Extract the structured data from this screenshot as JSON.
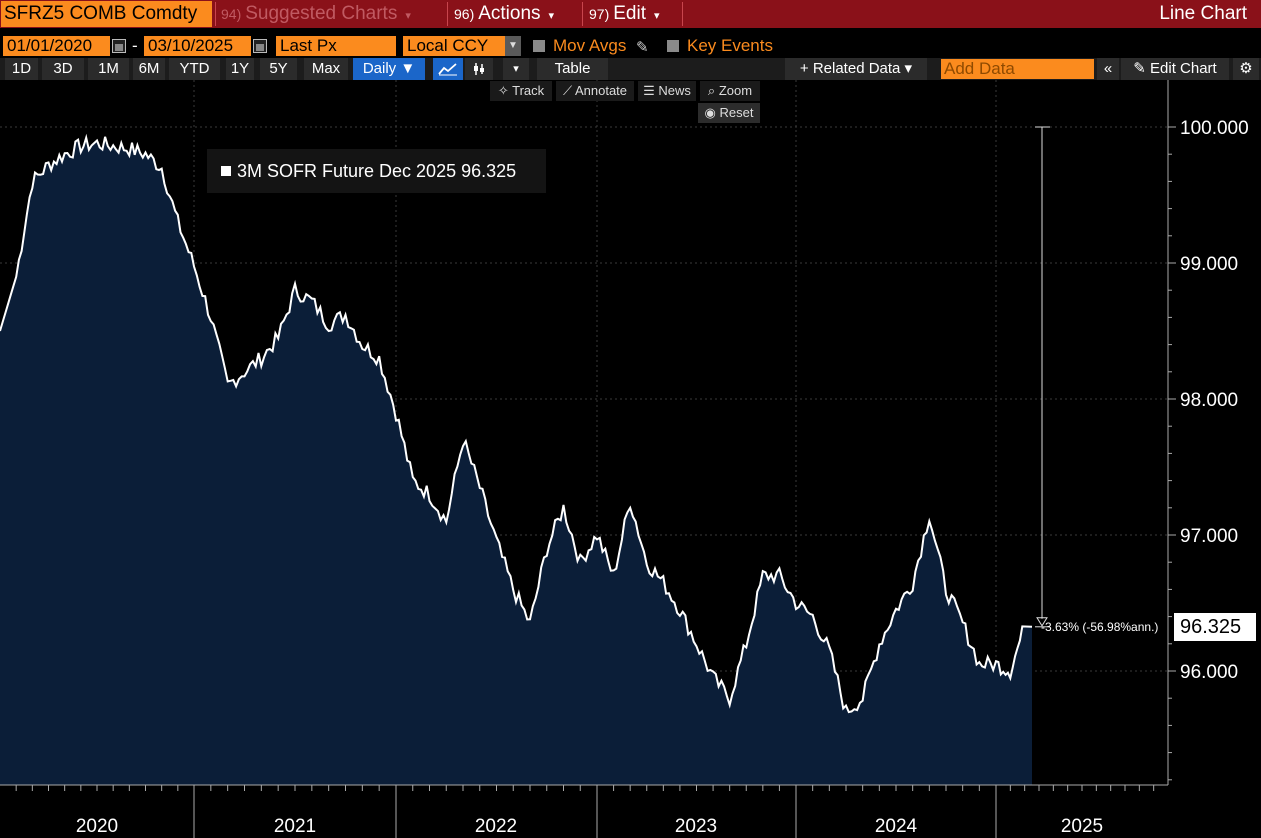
{
  "topbar": {
    "ticker": "SFRZ5 COMB Comdty",
    "menus": [
      {
        "num": "94)",
        "label": "Suggested Charts",
        "dim": true
      },
      {
        "num": "96)",
        "label": "Actions",
        "dim": false
      },
      {
        "num": "97)",
        "label": "Edit",
        "dim": false
      }
    ],
    "title": "Line Chart"
  },
  "controls": {
    "start_date": "01/01/2020",
    "date_sep": "-",
    "end_date": "03/10/2025",
    "field": "Last Px",
    "currency": "Local CCY",
    "mov_avgs": "Mov Avgs",
    "key_events": "Key Events"
  },
  "toolbar": {
    "ranges": [
      "1D",
      "3D",
      "1M",
      "6M",
      "YTD",
      "1Y",
      "5Y",
      "Max"
    ],
    "frequency": "Daily ▼",
    "table": "Table",
    "related_data": "+ Related Data ▾",
    "add_data_placeholder": "Add Data",
    "edit_chart": "Edit Chart"
  },
  "chart_tools": {
    "track": "Track",
    "annotate": "Annotate",
    "news": "News",
    "zoom": "Zoom",
    "reset": "Reset"
  },
  "legend": {
    "text": "3M SOFR Future Dec 2025 96.325"
  },
  "annotation": {
    "change": "-3.63% (-56.98%ann.)",
    "last_value": "96.325"
  },
  "colors": {
    "accent_orange": "#fb8b1e",
    "topbar_red": "#8a1119",
    "area_fill": "#0b1e38",
    "line": "#ffffff",
    "active_blue": "#1b66c9"
  },
  "chart_data": {
    "type": "area",
    "series": [
      {
        "name": "3M SOFR Future Dec 2025",
        "x": [
          "2020-01",
          "2020-02",
          "2020-03",
          "2020-04",
          "2020-05",
          "2020-06",
          "2020-07",
          "2020-08",
          "2020-09",
          "2020-10",
          "2020-11",
          "2020-12",
          "2021-01",
          "2021-02",
          "2021-03",
          "2021-04",
          "2021-05",
          "2021-06",
          "2021-07",
          "2021-08",
          "2021-09",
          "2021-10",
          "2021-11",
          "2021-12",
          "2022-01",
          "2022-02",
          "2022-03",
          "2022-04",
          "2022-05",
          "2022-06",
          "2022-07",
          "2022-08",
          "2022-09",
          "2022-10",
          "2022-11",
          "2022-12",
          "2023-01",
          "2023-02",
          "2023-03",
          "2023-04",
          "2023-05",
          "2023-06",
          "2023-07",
          "2023-08",
          "2023-09",
          "2023-10",
          "2023-11",
          "2023-12",
          "2024-01",
          "2024-02",
          "2024-03",
          "2024-04",
          "2024-05",
          "2024-06",
          "2024-07",
          "2024-08",
          "2024-09",
          "2024-10",
          "2024-11",
          "2024-12",
          "2025-01",
          "2025-02",
          "2025-03"
        ],
        "y": [
          98.5,
          98.9,
          99.6,
          99.72,
          99.8,
          99.86,
          99.88,
          99.86,
          99.84,
          99.8,
          99.7,
          99.3,
          98.98,
          98.6,
          98.1,
          98.2,
          98.3,
          98.45,
          98.8,
          98.72,
          98.55,
          98.62,
          98.4,
          98.3,
          97.9,
          97.4,
          97.3,
          97.1,
          97.7,
          97.35,
          96.95,
          96.6,
          96.35,
          96.9,
          97.2,
          96.8,
          97.0,
          96.7,
          97.25,
          96.8,
          96.65,
          96.45,
          96.2,
          95.95,
          95.8,
          96.2,
          96.7,
          96.7,
          96.5,
          96.4,
          96.15,
          95.7,
          95.8,
          96.2,
          96.45,
          96.65,
          97.15,
          96.6,
          96.35,
          96.05,
          96.05,
          96.0,
          96.33
        ]
      }
    ],
    "ylim": [
      95.1,
      100.3
    ],
    "yticks": [
      "100.000",
      "99.000",
      "98.000",
      "97.000",
      "96.000"
    ],
    "xticks": [
      "2020",
      "2021",
      "2022",
      "2023",
      "2024",
      "2025"
    ],
    "last_value": 96.325,
    "reference_value": 100.0,
    "grid": true
  }
}
